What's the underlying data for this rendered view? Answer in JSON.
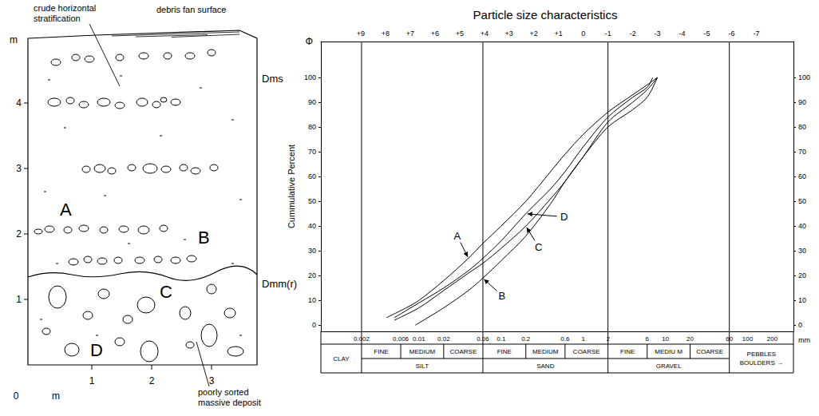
{
  "section_log": {
    "y_axis": {
      "unit": "m",
      "ticks": [
        1,
        2,
        3,
        4
      ]
    },
    "x_axis": {
      "unit": "m",
      "ticks": [
        0,
        1,
        2,
        3
      ]
    },
    "units": [
      {
        "code": "Dms",
        "samples": [
          "A",
          "B"
        ]
      },
      {
        "code": "Dmm(r)",
        "samples": [
          "C",
          "D"
        ]
      }
    ],
    "callouts": [
      "crude horizontal stratification",
      "debris fan surface",
      "poorly sorted massive deposit"
    ]
  },
  "chart_data": {
    "type": "line",
    "title": "Particle size characteristics",
    "xlabel": "mm",
    "ylabel": "Cummulative Percent",
    "x2label": "Φ",
    "log": "x",
    "grid": false,
    "xlim": [
      0.00064,
      362
    ],
    "xticks": [
      0.002,
      0.006,
      0.01,
      0.02,
      0.06,
      0.1,
      0.2,
      0.6,
      1,
      2,
      6,
      10,
      20,
      60,
      100,
      200
    ],
    "x2ticks": [
      {
        "value": 0.001953125,
        "label": "+9"
      },
      {
        "value": 0.00390625,
        "label": "+8"
      },
      {
        "value": 0.0078125,
        "label": "+7"
      },
      {
        "value": 0.015625,
        "label": "+6"
      },
      {
        "value": 0.03125,
        "label": "+5"
      },
      {
        "value": 0.0625,
        "label": "+4"
      },
      {
        "value": 0.125,
        "label": "+3"
      },
      {
        "value": 0.25,
        "label": "+2"
      },
      {
        "value": 0.5,
        "label": "+1"
      },
      {
        "value": 1,
        "label": "0"
      },
      {
        "value": 2,
        "label": "-1"
      },
      {
        "value": 4,
        "label": "-2"
      },
      {
        "value": 8,
        "label": "-3"
      },
      {
        "value": 16,
        "label": "-4"
      },
      {
        "value": 32,
        "label": "-5"
      },
      {
        "value": 64,
        "label": "-6"
      },
      {
        "value": 128,
        "label": "-7"
      }
    ],
    "ylim": [
      -2.5,
      114.5
    ],
    "yticks": [
      0,
      10,
      20,
      30,
      40,
      50,
      60,
      70,
      80,
      90,
      100
    ],
    "y2lim": [
      -2.5,
      114.5
    ],
    "y2ticks": [
      0,
      10,
      20,
      30,
      40,
      50,
      60,
      70,
      80,
      90,
      100
    ],
    "series": [
      {
        "name": "A",
        "color": "#000000",
        "x": [
          0.004,
          0.007,
          0.01,
          0.02,
          0.04,
          0.06,
          0.1,
          0.2,
          0.4,
          0.6,
          1,
          2,
          4,
          6,
          8
        ],
        "values": [
          3,
          7,
          10,
          18,
          27,
          33,
          40,
          50,
          62,
          69,
          77,
          86,
          93,
          97,
          100
        ]
      },
      {
        "name": "B",
        "color": "#000000",
        "x": [
          0.009,
          0.02,
          0.04,
          0.06,
          0.1,
          0.2,
          0.4,
          0.6,
          1,
          2,
          4,
          6,
          8
        ],
        "values": [
          0,
          7,
          14,
          19,
          26,
          36,
          49,
          58,
          68,
          80,
          87,
          92,
          100
        ]
      },
      {
        "name": "C",
        "color": "#000000",
        "x": [
          0.005,
          0.01,
          0.02,
          0.04,
          0.06,
          0.1,
          0.2,
          0.4,
          0.6,
          1,
          2,
          4,
          6,
          8
        ],
        "values": [
          2,
          7,
          14,
          21,
          25,
          31,
          40,
          51,
          58,
          68,
          82,
          90,
          95,
          100
        ]
      },
      {
        "name": "D",
        "color": "#000000",
        "x": [
          0.005,
          0.01,
          0.02,
          0.04,
          0.06,
          0.1,
          0.2,
          0.4,
          0.6,
          1,
          2,
          4,
          6,
          7
        ],
        "values": [
          3,
          9,
          15,
          22,
          27,
          34,
          45,
          55,
          62,
          72,
          84,
          92,
          96,
          100
        ]
      }
    ],
    "size_classes": [
      {
        "label": "CLAY",
        "to": 0.002
      },
      {
        "label": "SILT",
        "from": 0.002,
        "to": 0.06,
        "parts": [
          {
            "label": "FINE",
            "to": 0.006
          },
          {
            "label": "MEDIUM",
            "to": 0.02
          },
          {
            "label": "COARSE",
            "to": 0.06
          }
        ]
      },
      {
        "label": "SAND",
        "from": 0.06,
        "to": 2,
        "parts": [
          {
            "label": "FINE",
            "to": 0.2
          },
          {
            "label": "MEDIUM",
            "to": 0.6
          },
          {
            "label": "COARSE",
            "to": 2
          }
        ]
      },
      {
        "label": "GRAVEL",
        "from": 2,
        "to": 60,
        "parts": [
          {
            "label": "FINE",
            "to": 6
          },
          {
            "label": "MEDIU M",
            "to": 20
          },
          {
            "label": "COARSE",
            "to": 60
          }
        ]
      },
      {
        "label": [
          "PEBBLES",
          "BOULDERS →"
        ],
        "from": 60
      }
    ]
  }
}
